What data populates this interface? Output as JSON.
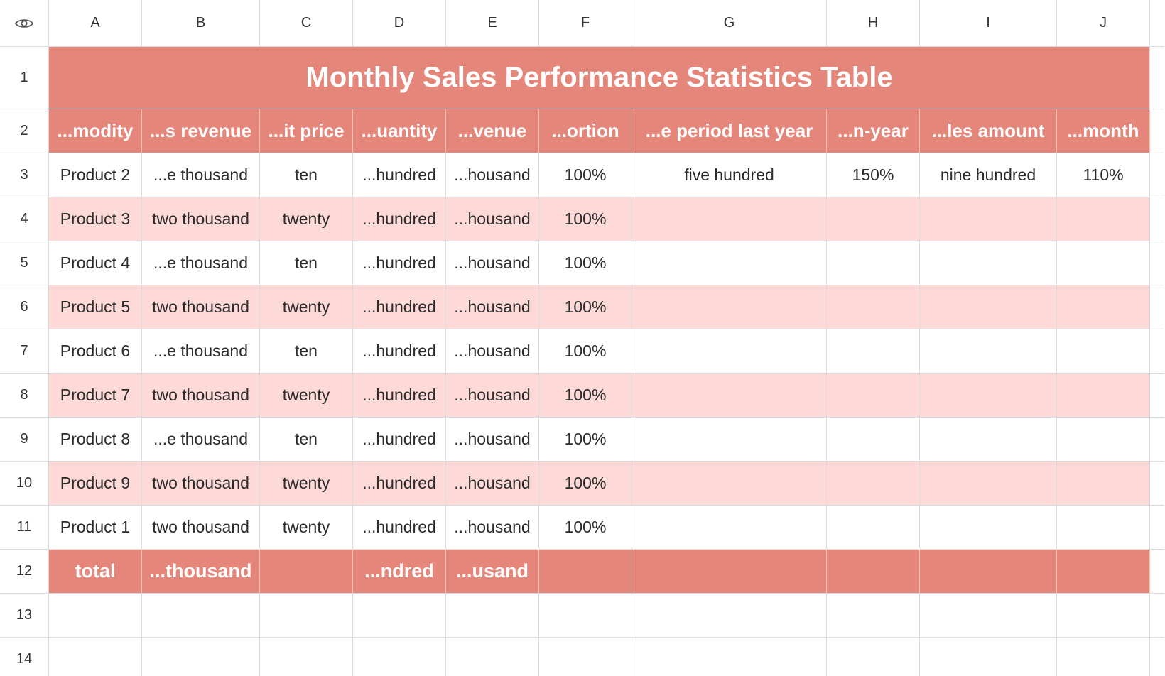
{
  "columns": [
    "A",
    "B",
    "C",
    "D",
    "E",
    "F",
    "G",
    "H",
    "I",
    "J"
  ],
  "row_numbers": [
    "1",
    "2",
    "3",
    "4",
    "5",
    "6",
    "7",
    "8",
    "9",
    "10",
    "11",
    "12",
    "13",
    "14"
  ],
  "title": "Monthly Sales Performance Statistics Table",
  "headers": [
    "...modity",
    "...s revenue",
    "...it price",
    "...uantity",
    "...venue",
    "...ortion",
    "...e period last year",
    "...n-year",
    "...les amount",
    "...month"
  ],
  "rows": [
    [
      "Product 2",
      "...e thousand",
      "ten",
      "...hundred",
      "...housand",
      "100%",
      "five hundred",
      "150%",
      "nine hundred",
      "110%"
    ],
    [
      "Product 3",
      "two thousand",
      "twenty",
      "...hundred",
      "...housand",
      "100%",
      "",
      "",
      "",
      ""
    ],
    [
      "Product 4",
      "...e thousand",
      "ten",
      "...hundred",
      "...housand",
      "100%",
      "",
      "",
      "",
      ""
    ],
    [
      "Product 5",
      "two thousand",
      "twenty",
      "...hundred",
      "...housand",
      "100%",
      "",
      "",
      "",
      ""
    ],
    [
      "Product 6",
      "...e thousand",
      "ten",
      "...hundred",
      "...housand",
      "100%",
      "",
      "",
      "",
      ""
    ],
    [
      "Product 7",
      "two thousand",
      "twenty",
      "...hundred",
      "...housand",
      "100%",
      "",
      "",
      "",
      ""
    ],
    [
      "Product 8",
      "...e thousand",
      "ten",
      "...hundred",
      "...housand",
      "100%",
      "",
      "",
      "",
      ""
    ],
    [
      "Product 9",
      "two thousand",
      "twenty",
      "...hundred",
      "...housand",
      "100%",
      "",
      "",
      "",
      ""
    ],
    [
      "Product 1",
      "two thousand",
      "twenty",
      "...hundred",
      "...housand",
      "100%",
      "",
      "",
      "",
      ""
    ]
  ],
  "totals": [
    "total",
    "...thousand",
    "",
    "...ndred",
    "...usand",
    "",
    "",
    "",
    "",
    ""
  ],
  "icons": {
    "corner": "eye-icon"
  },
  "colors": {
    "accent": "#e5867a",
    "band": "#fdd9d7",
    "grid": "#d9d9de"
  }
}
